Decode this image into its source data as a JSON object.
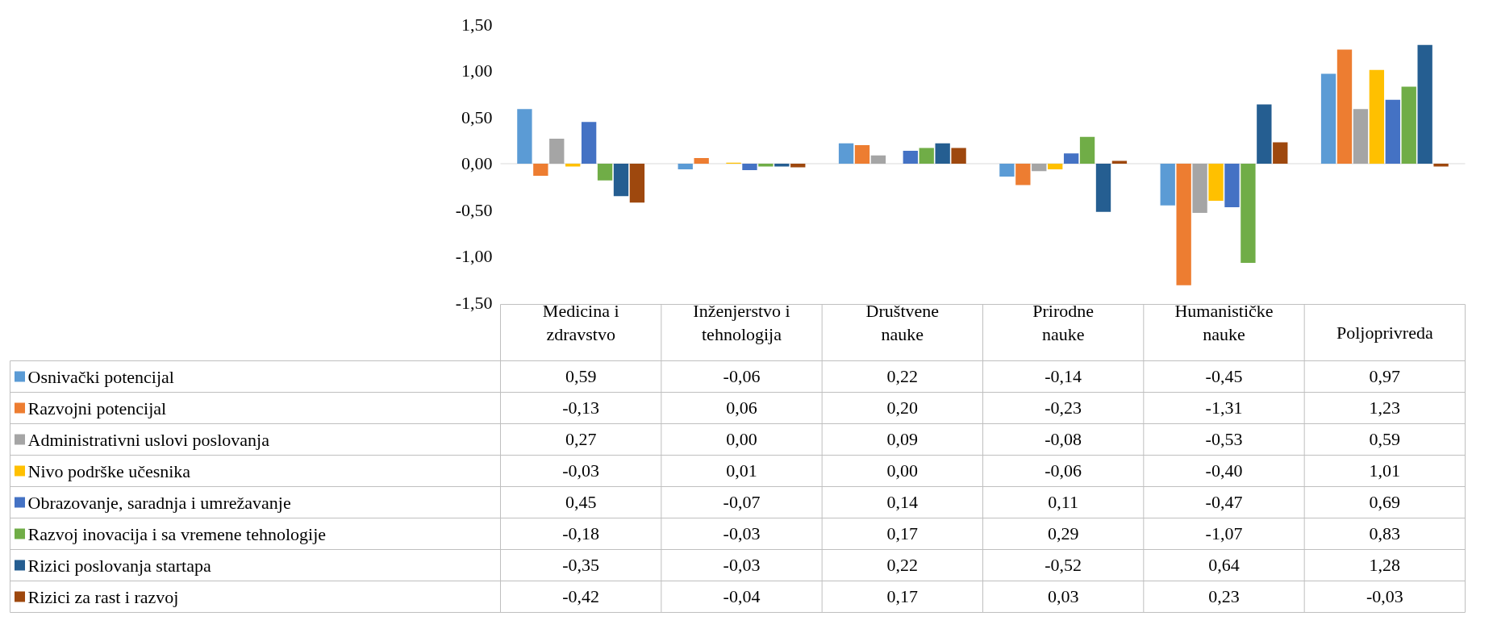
{
  "chart_data": {
    "type": "bar",
    "categories": [
      "Medicina i zdravstvo",
      "Inženjerstvo i tehnologija",
      "Društvene nauke",
      "Prirodne nauke",
      "Humanističke nauke",
      "Poljoprivreda"
    ],
    "series": [
      {
        "name": "Osnivački potencijal",
        "color": "#5b9bd5",
        "values": [
          0.59,
          -0.06,
          0.22,
          -0.14,
          -0.45,
          0.97
        ]
      },
      {
        "name": "Razvojni potencijal",
        "color": "#ed7d31",
        "values": [
          -0.13,
          0.06,
          0.2,
          -0.23,
          -1.31,
          1.23
        ]
      },
      {
        "name": "Administrativni uslovi poslovanja",
        "color": "#a5a5a5",
        "values": [
          0.27,
          0.0,
          0.09,
          -0.08,
          -0.53,
          0.59
        ]
      },
      {
        "name": "Nivo podrške učesnika",
        "color": "#ffc000",
        "values": [
          -0.03,
          0.01,
          0.0,
          -0.06,
          -0.4,
          1.01
        ]
      },
      {
        "name": "Obrazovanje, saradnja i umrežavanje",
        "color": "#4472c4",
        "values": [
          0.45,
          -0.07,
          0.14,
          0.11,
          -0.47,
          0.69
        ]
      },
      {
        "name": "Razvoj inovacija i sa vremene tehnologije",
        "color": "#70ad47",
        "values": [
          -0.18,
          -0.03,
          0.17,
          0.29,
          -1.07,
          0.83
        ]
      },
      {
        "name": "Rizici poslovanja startapa",
        "color": "#255e91",
        "values": [
          -0.35,
          -0.03,
          0.22,
          -0.52,
          0.64,
          1.28
        ]
      },
      {
        "name": "Rizici za rast i razvoj",
        "color": "#9e480e",
        "values": [
          -0.42,
          -0.04,
          0.17,
          0.03,
          0.23,
          -0.03
        ]
      }
    ],
    "ylim": [
      -1.5,
      1.5
    ],
    "yticks": [
      {
        "value": -1.5,
        "label": "-1,50"
      },
      {
        "value": -1.0,
        "label": "-1,00"
      },
      {
        "value": -0.5,
        "label": "-0,50"
      },
      {
        "value": 0,
        "label": "0,00"
      },
      {
        "value": 0.5,
        "label": "0,50"
      },
      {
        "value": 1.0,
        "label": "1,00"
      },
      {
        "value": 1.5,
        "label": "1,50"
      }
    ],
    "value_labels": [
      [
        "0,59",
        "-0,06",
        "0,22",
        "-0,14",
        "-0,45",
        "0,97"
      ],
      [
        "-0,13",
        "0,06",
        "0,20",
        "-0,23",
        "-1,31",
        "1,23"
      ],
      [
        "0,27",
        "0,00",
        "0,09",
        "-0,08",
        "-0,53",
        "0,59"
      ],
      [
        "-0,03",
        "0,01",
        "0,00",
        "-0,06",
        "-0,40",
        "1,01"
      ],
      [
        "0,45",
        "-0,07",
        "0,14",
        "0,11",
        "-0,47",
        "0,69"
      ],
      [
        "-0,18",
        "-0,03",
        "0,17",
        "0,29",
        "-1,07",
        "0,83"
      ],
      [
        "-0,35",
        "-0,03",
        "0,22",
        "-0,52",
        "0,64",
        "1,28"
      ],
      [
        "-0,42",
        "-0,04",
        "0,17",
        "0,03",
        "0,23",
        "-0,03"
      ]
    ],
    "legend": "bottom left"
  }
}
